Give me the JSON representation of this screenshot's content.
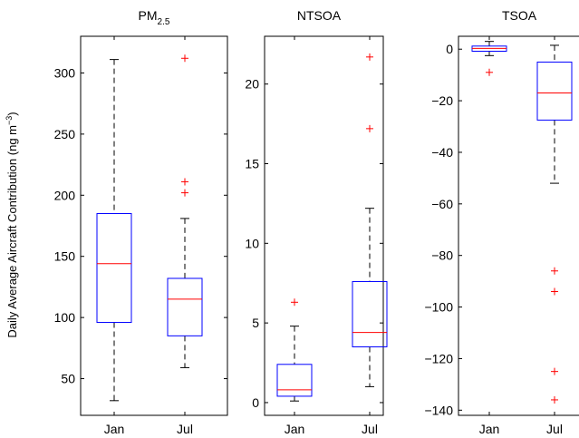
{
  "figure": {
    "ylabel_main": "Daily Average Aircraft Contribution (ng m",
    "ylabel_sup": "−3",
    "ylabel_close": ")"
  },
  "chart_data": [
    {
      "type": "box",
      "title": "PM",
      "title_sub": "2.5",
      "categories": [
        "Jan",
        "Jul"
      ],
      "yticks": [
        50,
        100,
        150,
        200,
        250,
        300
      ],
      "ylim": [
        20,
        330
      ],
      "boxes": [
        {
          "category": "Jan",
          "whisker_low": 32,
          "q1": 96,
          "median": 144,
          "q3": 185,
          "whisker_high": 311,
          "outliers": []
        },
        {
          "category": "Jul",
          "whisker_low": 59,
          "q1": 85,
          "median": 115,
          "q3": 132,
          "whisker_high": 181,
          "outliers": [
            202,
            211,
            312
          ]
        }
      ]
    },
    {
      "type": "box",
      "title": "NTSOA",
      "title_sub": "",
      "categories": [
        "Jan",
        "Jul"
      ],
      "yticks": [
        0,
        5,
        10,
        15,
        20
      ],
      "ylim": [
        -0.8,
        23
      ],
      "boxes": [
        {
          "category": "Jan",
          "whisker_low": 0.1,
          "q1": 0.4,
          "median": 0.8,
          "q3": 2.4,
          "whisker_high": 4.8,
          "outliers": [
            6.3
          ]
        },
        {
          "category": "Jul",
          "whisker_low": 1.0,
          "q1": 3.5,
          "median": 4.4,
          "q3": 7.6,
          "whisker_high": 12.2,
          "outliers": [
            17.2,
            21.7
          ]
        }
      ]
    },
    {
      "type": "box",
      "title": "TSOA",
      "title_sub": "",
      "categories": [
        "Jan",
        "Jul"
      ],
      "yticks": [
        -140,
        -120,
        -100,
        -80,
        -60,
        -40,
        -20,
        0
      ],
      "ylim": [
        -142,
        5
      ],
      "boxes": [
        {
          "category": "Jan",
          "whisker_low": -2.5,
          "q1": -0.8,
          "median": 0.3,
          "q3": 1.2,
          "whisker_high": 3,
          "outliers": [
            -9
          ]
        },
        {
          "category": "Jul",
          "whisker_low": -52,
          "q1": -27.5,
          "median": -17,
          "q3": -5,
          "whisker_high": 1.5,
          "outliers": [
            -86,
            -94,
            -125,
            -136
          ]
        }
      ]
    }
  ]
}
